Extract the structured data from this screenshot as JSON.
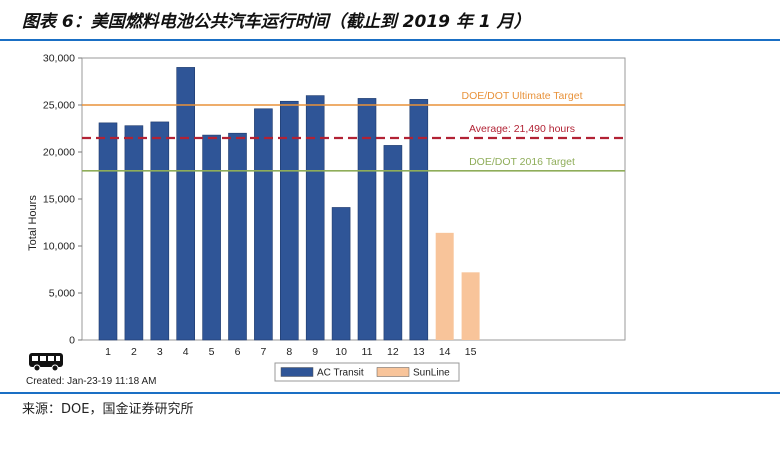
{
  "figure_title": "图表 6：美国燃料电池公共汽车运行时间（截止到 2019 年 1 月）",
  "source_text": "来源：DOE，国金证券研究所",
  "created_text": "Created: Jan-23-19 11:18 AM",
  "colors": {
    "ac_transit": "#2f5597",
    "sunline": "#f8c49a",
    "ultimate_target": "#e8923a",
    "average": "#b22234",
    "target_2016": "#8fad5a",
    "accent_rule": "#1a6fc4"
  },
  "chart_data": {
    "type": "bar",
    "title": "",
    "xlabel": "",
    "ylabel": "Total Hours",
    "ylim": [
      0,
      30000
    ],
    "yticks": [
      0,
      5000,
      10000,
      15000,
      20000,
      25000,
      30000
    ],
    "ytick_labels": [
      "0",
      "5,000",
      "10,000",
      "15,000",
      "20,000",
      "25,000",
      "30,000"
    ],
    "categories": [
      "1",
      "2",
      "3",
      "4",
      "5",
      "6",
      "7",
      "8",
      "9",
      "10",
      "11",
      "12",
      "13",
      "14",
      "15"
    ],
    "series": [
      {
        "name": "AC Transit",
        "color": "#2f5597",
        "values": [
          23100,
          22800,
          23200,
          29000,
          21800,
          22000,
          24600,
          25400,
          26000,
          14100,
          25700,
          20700,
          25600,
          null,
          null
        ]
      },
      {
        "name": "SunLine",
        "color": "#f8c49a",
        "values": [
          null,
          null,
          null,
          null,
          null,
          null,
          null,
          null,
          null,
          null,
          null,
          null,
          null,
          11400,
          7200
        ]
      }
    ],
    "reference_lines": [
      {
        "label": "DOE/DOT Ultimate Target",
        "value": 25000,
        "style": "solid",
        "color": "#e8923a"
      },
      {
        "label": "Average: 21,490 hours",
        "value": 21490,
        "style": "dashed",
        "color": "#b22234"
      },
      {
        "label": "DOE/DOT 2016 Target",
        "value": 18000,
        "style": "solid",
        "color": "#8fad5a"
      }
    ],
    "legend_position": "bottom-center",
    "grid": false
  }
}
